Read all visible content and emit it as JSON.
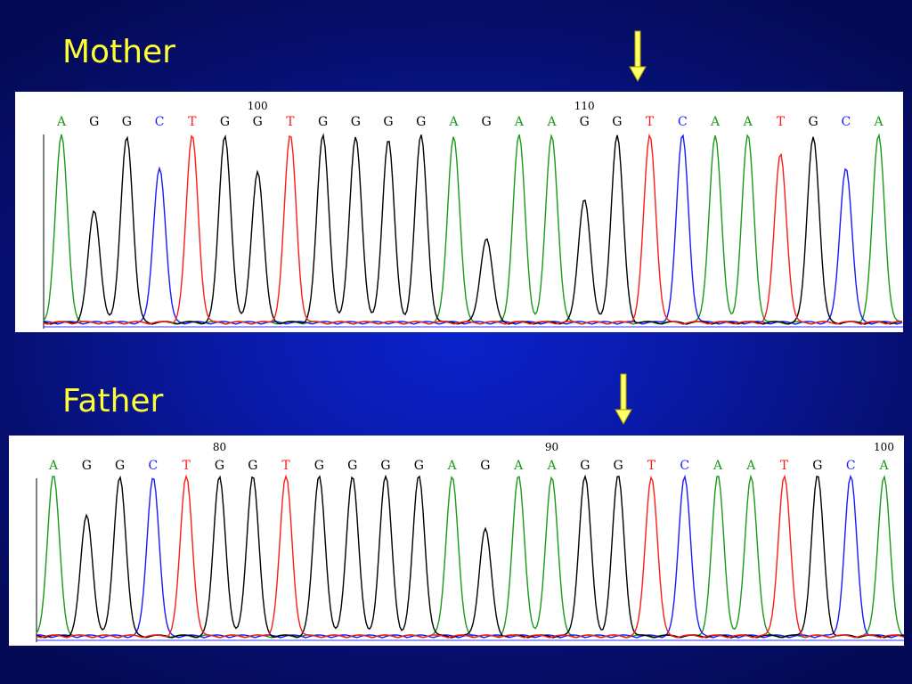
{
  "mother": {
    "label": "Mother",
    "position_markers": [
      {
        "label": "100",
        "base_index": 6
      },
      {
        "label": "110",
        "base_index": 16
      }
    ],
    "bases": [
      "A",
      "G",
      "G",
      "C",
      "T",
      "G",
      "G",
      "T",
      "G",
      "G",
      "G",
      "G",
      "A",
      "G",
      "A",
      "A",
      "G",
      "G",
      "T",
      "C",
      "A",
      "A",
      "T",
      "G",
      "C",
      "A"
    ]
  },
  "father": {
    "label": "Father",
    "position_markers": [
      {
        "label": "80",
        "base_index": 5
      },
      {
        "label": "90",
        "base_index": 15
      },
      {
        "label": "100",
        "base_index": 25
      }
    ],
    "bases": [
      "A",
      "G",
      "G",
      "C",
      "T",
      "G",
      "G",
      "T",
      "G",
      "G",
      "G",
      "G",
      "A",
      "G",
      "A",
      "A",
      "G",
      "G",
      "T",
      "C",
      "A",
      "A",
      "T",
      "G",
      "C",
      "A"
    ]
  },
  "base_colors": {
    "A": "#1a9a1a",
    "G": "#000000",
    "C": "#1a1aff",
    "T": "#ff1a1a"
  },
  "arrow_color": "#ffff66"
}
